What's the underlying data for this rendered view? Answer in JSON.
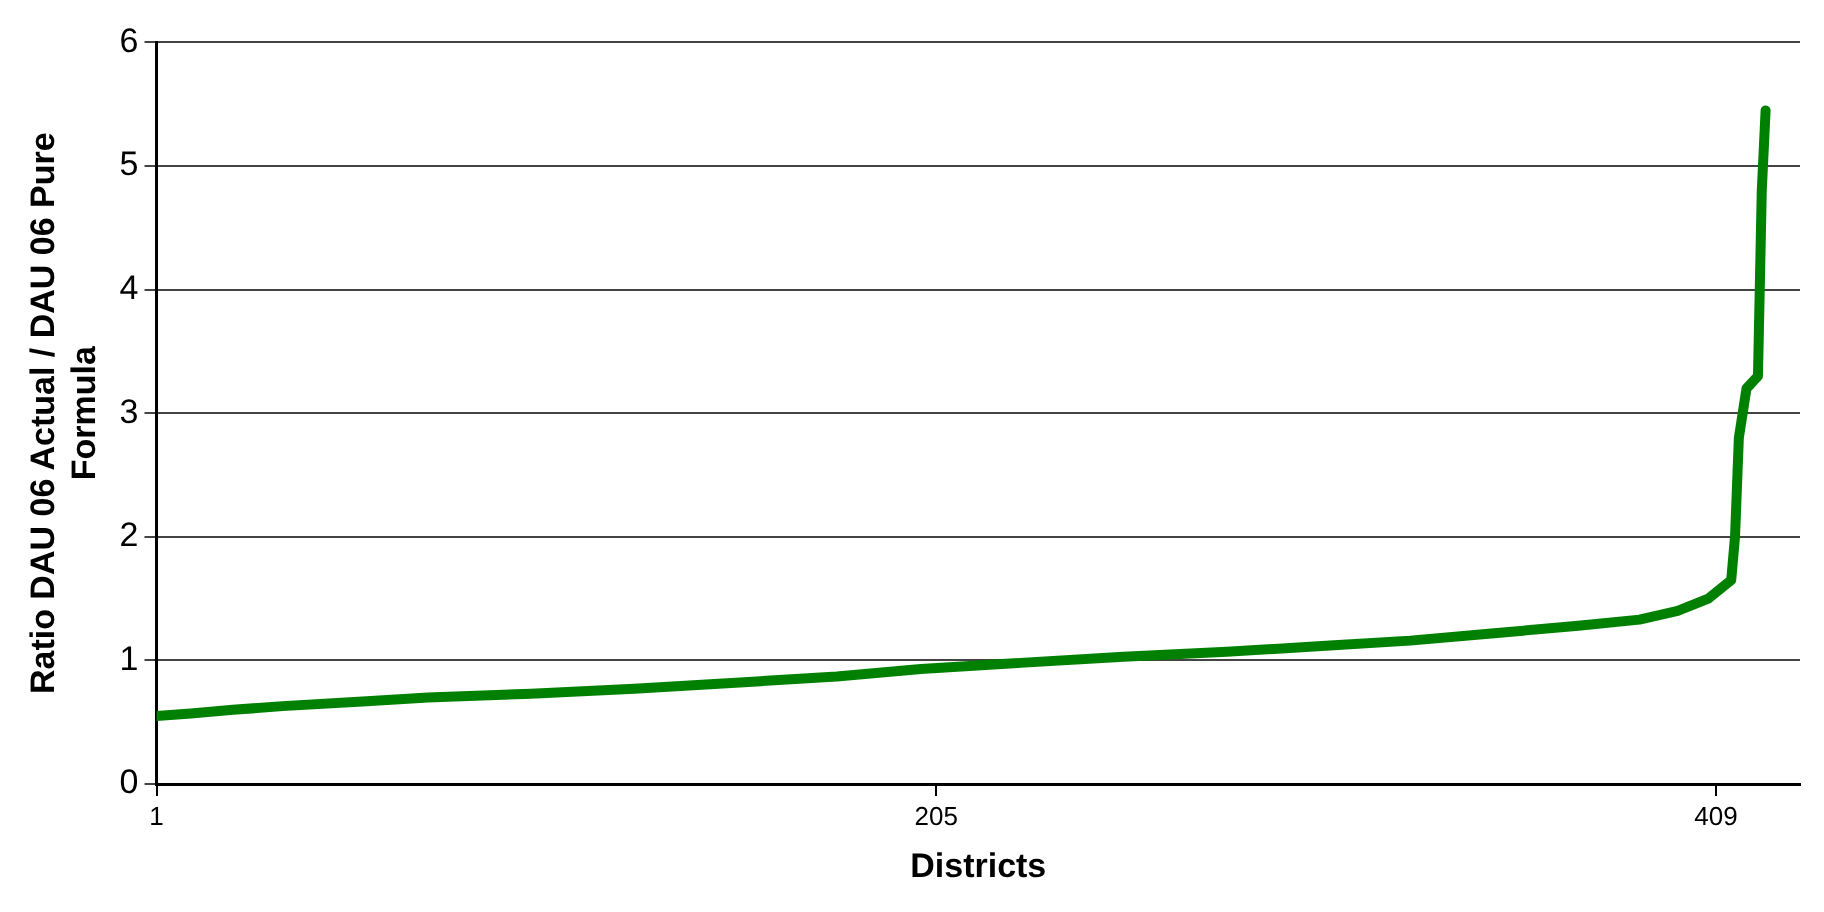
{
  "chart_data": {
    "type": "line",
    "xlabel": "Districts",
    "ylabel": "Ratio DAU 06 Actual / DAU 06 Pure Formula",
    "x": [
      1,
      10,
      21,
      34,
      56,
      72,
      99,
      126,
      158,
      179,
      201,
      227,
      254,
      281,
      308,
      329,
      351,
      373,
      389,
      399,
      407,
      413,
      414,
      415,
      417,
      420,
      421,
      422
    ],
    "series": [
      {
        "color": "#008000",
        "values": [
          0.55,
          0.57,
          0.6,
          0.63,
          0.67,
          0.7,
          0.73,
          0.77,
          0.83,
          0.87,
          0.93,
          0.98,
          1.03,
          1.07,
          1.12,
          1.16,
          1.22,
          1.28,
          1.33,
          1.4,
          1.5,
          1.65,
          2.0,
          2.8,
          3.2,
          3.3,
          4.8,
          5.45
        ]
      }
    ],
    "xlim": [
      1,
      431
    ],
    "xticks": [
      1,
      205,
      409
    ],
    "ylim": [
      0,
      6
    ],
    "yticks": [
      0,
      1,
      2,
      3,
      4,
      5,
      6
    ],
    "grid": "y",
    "legend": false,
    "marker": "none",
    "line_style": "solid"
  }
}
